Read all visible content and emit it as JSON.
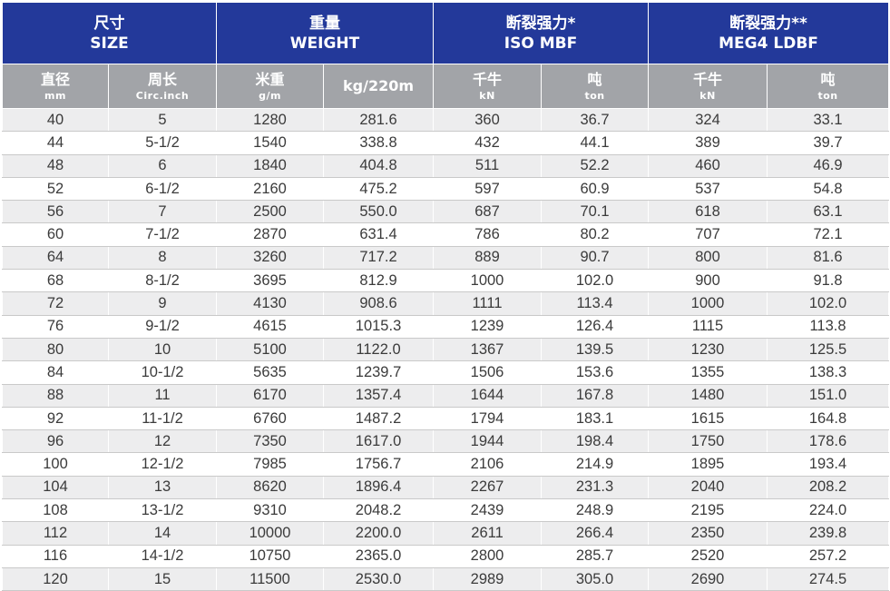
{
  "groups": [
    {
      "cn": "尺寸",
      "en": "SIZE"
    },
    {
      "cn": "重量",
      "en": "WEIGHT"
    },
    {
      "cn": "断裂强力*",
      "en": "ISO MBF"
    },
    {
      "cn": "断裂强力**",
      "en": "MEG4 LDBF"
    }
  ],
  "subheaders": [
    {
      "top": "直径",
      "bot": "mm"
    },
    {
      "top": "周长",
      "bot": "Circ.inch"
    },
    {
      "top": "米重",
      "bot": "g/m"
    },
    {
      "top": "kg/220m",
      "bot": ""
    },
    {
      "top": "千牛",
      "bot": "kN"
    },
    {
      "top": "吨",
      "bot": "ton"
    },
    {
      "top": "千牛",
      "bot": "kN"
    },
    {
      "top": "吨",
      "bot": "ton"
    }
  ],
  "rows": [
    [
      "40",
      "5",
      "1280",
      "281.6",
      "360",
      "36.7",
      "324",
      "33.1"
    ],
    [
      "44",
      "5-1/2",
      "1540",
      "338.8",
      "432",
      "44.1",
      "389",
      "39.7"
    ],
    [
      "48",
      "6",
      "1840",
      "404.8",
      "511",
      "52.2",
      "460",
      "46.9"
    ],
    [
      "52",
      "6-1/2",
      "2160",
      "475.2",
      "597",
      "60.9",
      "537",
      "54.8"
    ],
    [
      "56",
      "7",
      "2500",
      "550.0",
      "687",
      "70.1",
      "618",
      "63.1"
    ],
    [
      "60",
      "7-1/2",
      "2870",
      "631.4",
      "786",
      "80.2",
      "707",
      "72.1"
    ],
    [
      "64",
      "8",
      "3260",
      "717.2",
      "889",
      "90.7",
      "800",
      "81.6"
    ],
    [
      "68",
      "8-1/2",
      "3695",
      "812.9",
      "1000",
      "102.0",
      "900",
      "91.8"
    ],
    [
      "72",
      "9",
      "4130",
      "908.6",
      "1111",
      "113.4",
      "1000",
      "102.0"
    ],
    [
      "76",
      "9-1/2",
      "4615",
      "1015.3",
      "1239",
      "126.4",
      "1115",
      "113.8"
    ],
    [
      "80",
      "10",
      "5100",
      "1122.0",
      "1367",
      "139.5",
      "1230",
      "125.5"
    ],
    [
      "84",
      "10-1/2",
      "5635",
      "1239.7",
      "1506",
      "153.6",
      "1355",
      "138.3"
    ],
    [
      "88",
      "11",
      "6170",
      "1357.4",
      "1644",
      "167.8",
      "1480",
      "151.0"
    ],
    [
      "92",
      "11-1/2",
      "6760",
      "1487.2",
      "1794",
      "183.1",
      "1615",
      "164.8"
    ],
    [
      "96",
      "12",
      "7350",
      "1617.0",
      "1944",
      "198.4",
      "1750",
      "178.6"
    ],
    [
      "100",
      "12-1/2",
      "7985",
      "1756.7",
      "2106",
      "214.9",
      "1895",
      "193.4"
    ],
    [
      "104",
      "13",
      "8620",
      "1896.4",
      "2267",
      "231.3",
      "2040",
      "208.2"
    ],
    [
      "108",
      "13-1/2",
      "9310",
      "2048.2",
      "2439",
      "248.9",
      "2195",
      "224.0"
    ],
    [
      "112",
      "14",
      "10000",
      "2200.0",
      "2611",
      "266.4",
      "2350",
      "239.8"
    ],
    [
      "116",
      "14-1/2",
      "10750",
      "2365.0",
      "2800",
      "285.7",
      "2520",
      "257.2"
    ],
    [
      "120",
      "15",
      "11500",
      "2530.0",
      "2989",
      "305.0",
      "2690",
      "274.5"
    ]
  ],
  "colors": {
    "header_blue": "#23399a",
    "subheader_gray": "#a2a4a8",
    "stripe": "#ededee",
    "text": "#3b3b3b"
  }
}
